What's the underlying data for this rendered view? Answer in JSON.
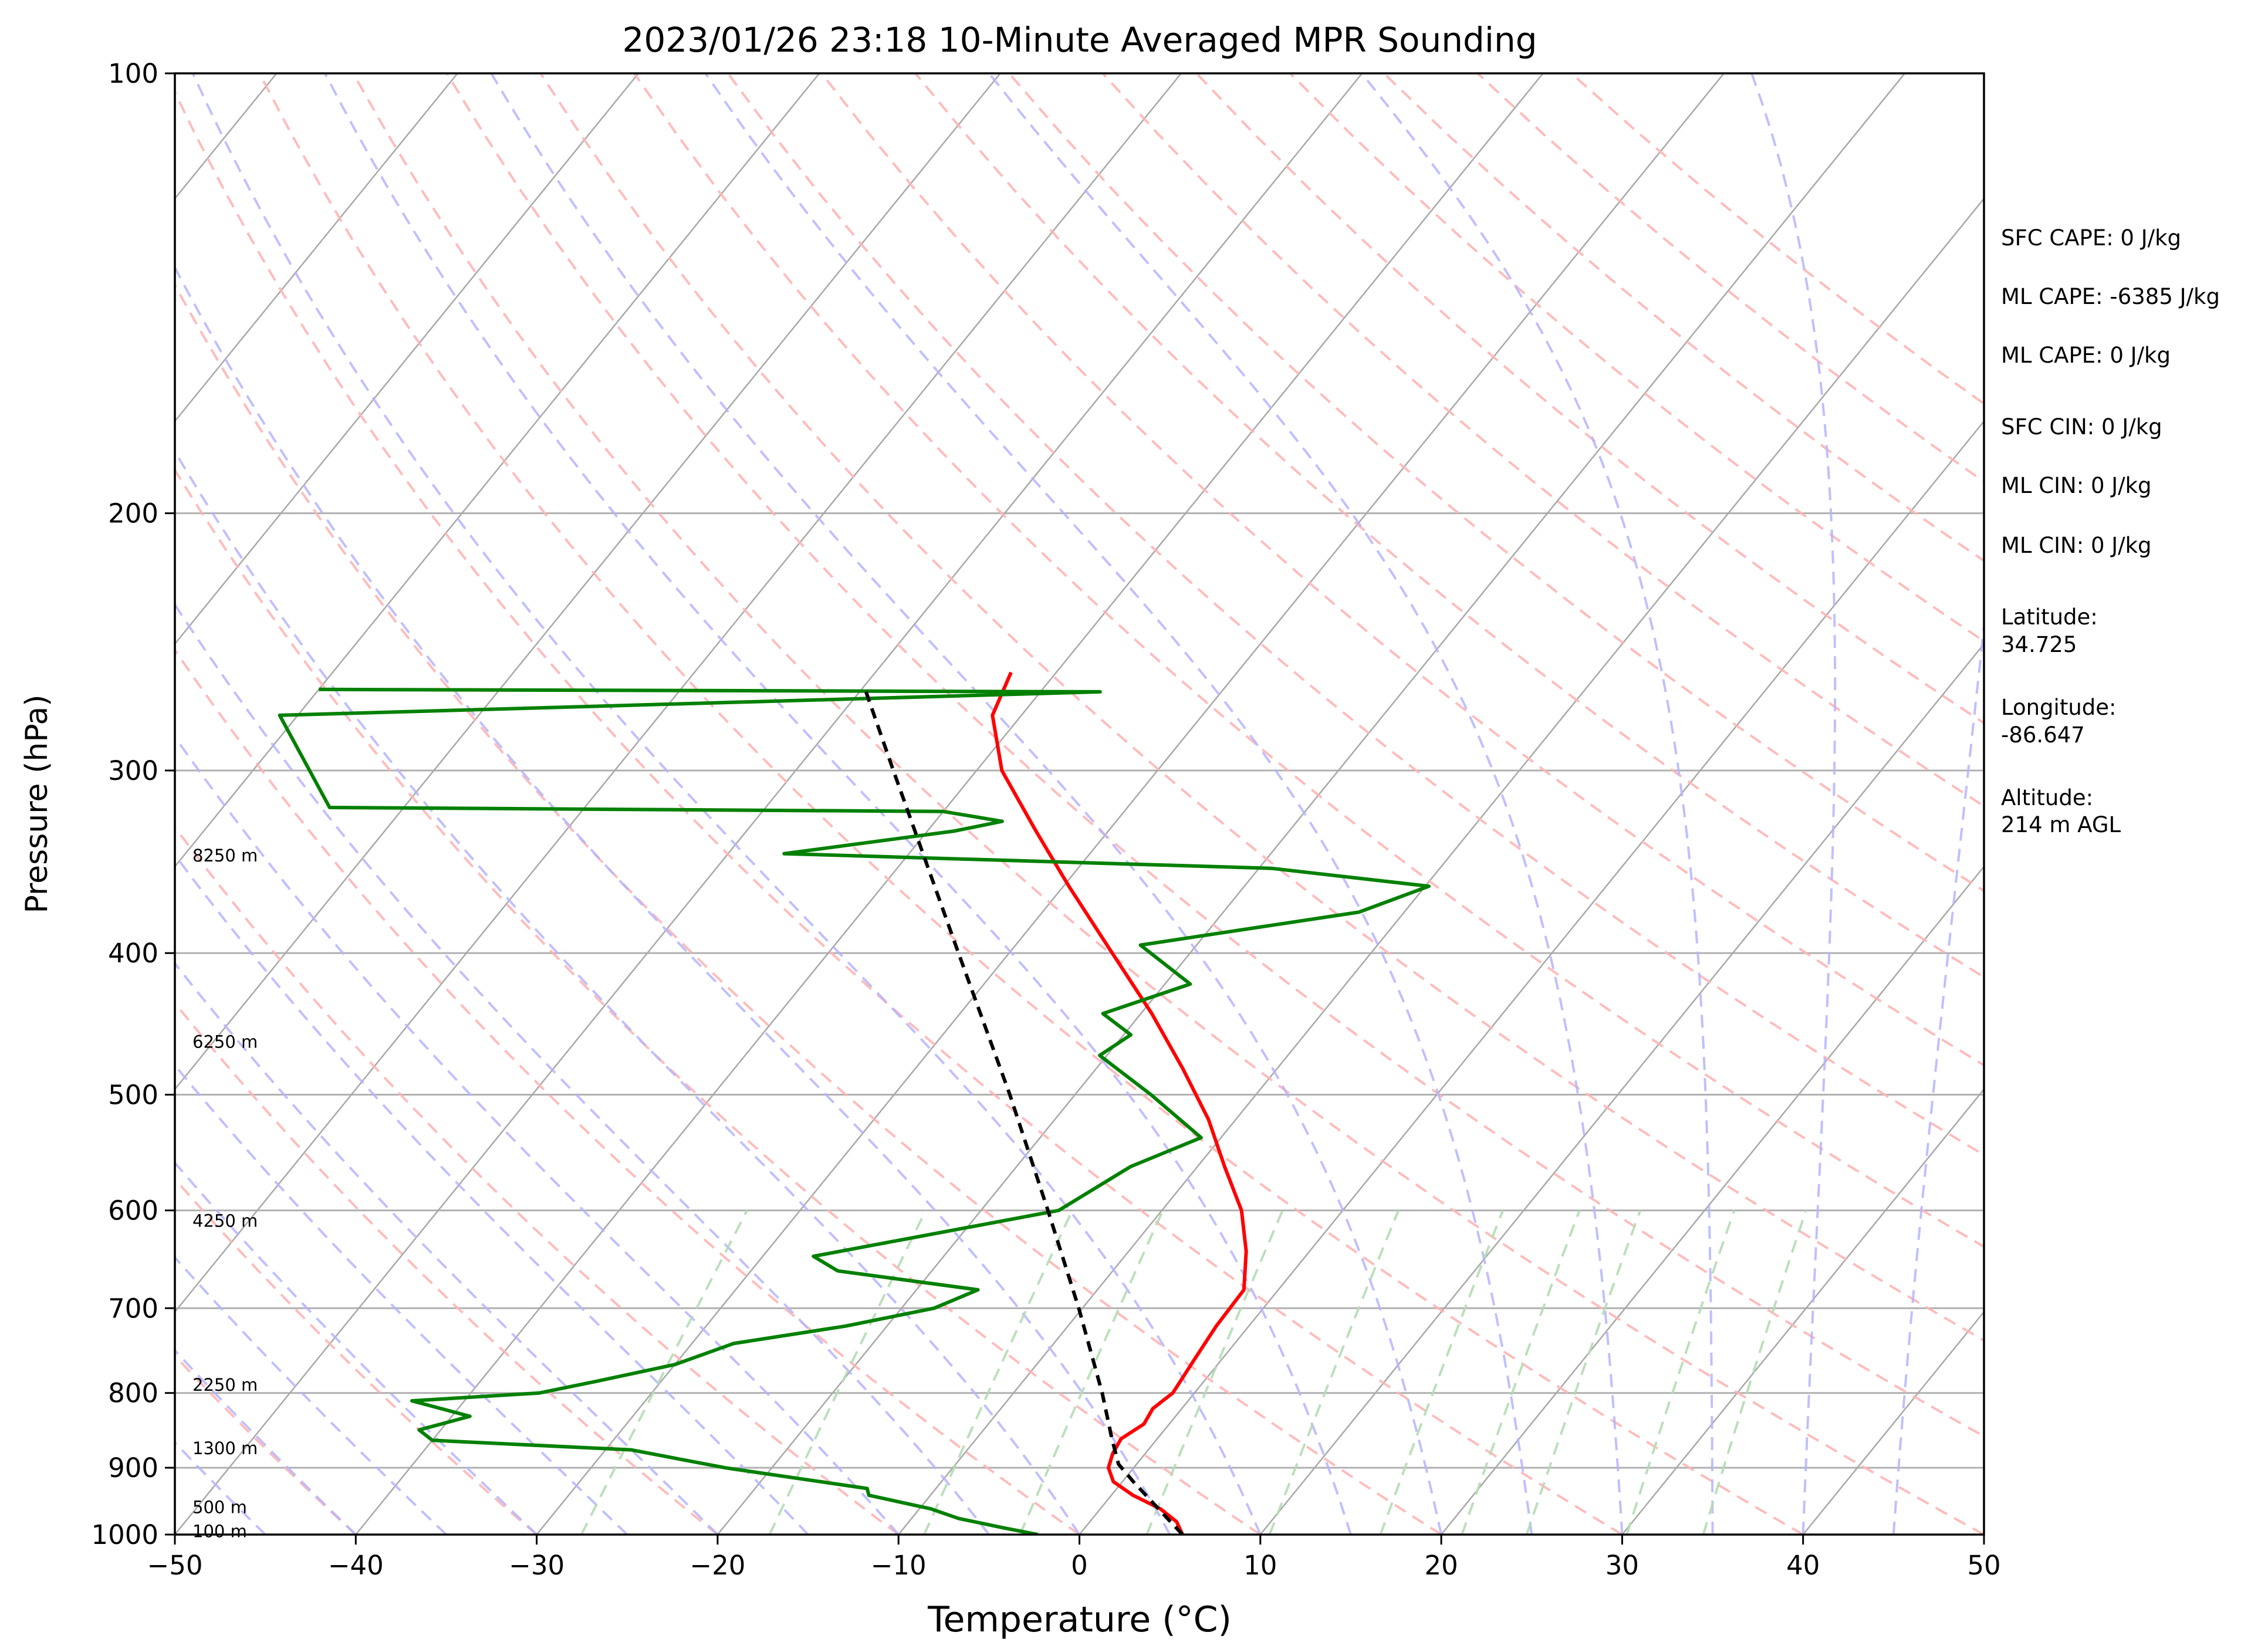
{
  "chart_data": {
    "type": "line",
    "title": "2023/01/26 23:18 10-Minute Averaged MPR Sounding",
    "xlabel": "Temperature (°C)",
    "ylabel": "Pressure (hPa)",
    "xlim": [
      -50,
      50
    ],
    "ylim": [
      1000,
      100
    ],
    "y_scale": "log",
    "skew_t": true,
    "grid": true,
    "x_ticks": [
      "−50",
      "−40",
      "−30",
      "−20",
      "−10",
      "0",
      "10",
      "20",
      "30",
      "40",
      "50"
    ],
    "x_tick_values": [
      -50,
      -40,
      -30,
      -20,
      -10,
      0,
      10,
      20,
      30,
      40,
      50
    ],
    "y_ticks": [
      "100",
      "200",
      "300",
      "400",
      "500",
      "600",
      "700",
      "800",
      "900",
      "1000"
    ],
    "y_tick_values": [
      100,
      200,
      300,
      400,
      500,
      600,
      700,
      800,
      900,
      1000
    ],
    "series": [
      {
        "role": "temperature",
        "color": "#ff0000",
        "points": [
          {
            "p": 1000,
            "t": 5.7
          },
          {
            "p": 980,
            "t": 4.8
          },
          {
            "p": 960,
            "t": 3.3
          },
          {
            "p": 940,
            "t": 1.2
          },
          {
            "p": 920,
            "t": -0.5
          },
          {
            "p": 900,
            "t": -1.4
          },
          {
            "p": 880,
            "t": -1.8
          },
          {
            "p": 860,
            "t": -2.0
          },
          {
            "p": 840,
            "t": -1.4
          },
          {
            "p": 820,
            "t": -1.6
          },
          {
            "p": 800,
            "t": -1.2
          },
          {
            "p": 760,
            "t": -1.5
          },
          {
            "p": 720,
            "t": -1.8
          },
          {
            "p": 680,
            "t": -1.9
          },
          {
            "p": 640,
            "t": -3.5
          },
          {
            "p": 600,
            "t": -5.6
          },
          {
            "p": 560,
            "t": -8.5
          },
          {
            "p": 520,
            "t": -11.5
          },
          {
            "p": 480,
            "t": -15.2
          },
          {
            "p": 440,
            "t": -19.4
          },
          {
            "p": 400,
            "t": -24.3
          },
          {
            "p": 360,
            "t": -29.7
          },
          {
            "p": 330,
            "t": -34.0
          },
          {
            "p": 300,
            "t": -38.6
          },
          {
            "p": 275,
            "t": -41.6
          },
          {
            "p": 257,
            "t": -42.5
          }
        ]
      },
      {
        "role": "dewpoint",
        "color": "#008000",
        "points": [
          {
            "p": 1000,
            "t": -2.3
          },
          {
            "p": 990,
            "t": -4.4
          },
          {
            "p": 975,
            "t": -7.4
          },
          {
            "p": 960,
            "t": -9.4
          },
          {
            "p": 940,
            "t": -13.4
          },
          {
            "p": 930,
            "t": -13.8
          },
          {
            "p": 900,
            "t": -22.6
          },
          {
            "p": 875,
            "t": -28.6
          },
          {
            "p": 862,
            "t": -40.0
          },
          {
            "p": 848,
            "t": -41.2
          },
          {
            "p": 830,
            "t": -39.0
          },
          {
            "p": 810,
            "t": -42.9
          },
          {
            "p": 800,
            "t": -36.2
          },
          {
            "p": 785,
            "t": -33.5
          },
          {
            "p": 765,
            "t": -30.0
          },
          {
            "p": 740,
            "t": -27.7
          },
          {
            "p": 720,
            "t": -22.3
          },
          {
            "p": 700,
            "t": -18.2
          },
          {
            "p": 680,
            "t": -16.6
          },
          {
            "p": 660,
            "t": -25.2
          },
          {
            "p": 645,
            "t": -27.2
          },
          {
            "p": 600,
            "t": -15.7
          },
          {
            "p": 560,
            "t": -13.7
          },
          {
            "p": 535,
            "t": -11.1
          },
          {
            "p": 500,
            "t": -15.8
          },
          {
            "p": 470,
            "t": -20.4
          },
          {
            "p": 455,
            "t": -19.6
          },
          {
            "p": 440,
            "t": -22.1
          },
          {
            "p": 420,
            "t": -18.6
          },
          {
            "p": 395,
            "t": -23.1
          },
          {
            "p": 375,
            "t": -12.5
          },
          {
            "p": 360,
            "t": -9.8
          },
          {
            "p": 350,
            "t": -19.3
          },
          {
            "p": 342,
            "t": -46.9
          },
          {
            "p": 330,
            "t": -38.5
          },
          {
            "p": 325,
            "t": -36.3
          },
          {
            "p": 320,
            "t": -40.0
          },
          {
            "p": 318,
            "t": -74.1
          },
          {
            "p": 275,
            "t": -81.0
          },
          {
            "p": 265,
            "t": -36.7
          },
          {
            "p": 264,
            "t": -80.0
          }
        ]
      },
      {
        "role": "parcel",
        "color": "#000000",
        "dashed": true,
        "points": [
          {
            "p": 1000,
            "t": 5.7
          },
          {
            "p": 960,
            "t": 3.2
          },
          {
            "p": 920,
            "t": 0.6
          },
          {
            "p": 895,
            "t": -1.0
          },
          {
            "p": 860,
            "t": -2.5
          },
          {
            "p": 800,
            "t": -5.1
          },
          {
            "p": 700,
            "t": -10.2
          },
          {
            "p": 600,
            "t": -16.3
          },
          {
            "p": 500,
            "t": -23.6
          },
          {
            "p": 400,
            "t": -32.8
          },
          {
            "p": 300,
            "t": -44.6
          },
          {
            "p": 264,
            "t": -49.8
          }
        ]
      }
    ],
    "height_labels": [
      {
        "text": "8250 m",
        "p": 343
      },
      {
        "text": "6250 m",
        "p": 460
      },
      {
        "text": "4250 m",
        "p": 610
      },
      {
        "text": "2250 m",
        "p": 790
      },
      {
        "text": "1300 m",
        "p": 873
      },
      {
        "text": "500 m",
        "p": 958
      },
      {
        "text": "100 m",
        "p": 995
      }
    ],
    "background_lines": {
      "isotherms": {
        "color": "#aaaaaa",
        "every_c": 10
      },
      "dry_adiabats": {
        "color": "#ffc0c0",
        "dashed": true
      },
      "moist_adiabats": {
        "color": "#c8c8ff",
        "dashed": true
      },
      "mixing_ratio": {
        "color": "#c8e0c8",
        "dashed": true
      }
    }
  },
  "info_panel": {
    "sfc_cape": "SFC CAPE: 0 J/kg",
    "ml_cape_1": "ML CAPE: -6385 J/kg",
    "ml_cape_2": "ML CAPE: 0 J/kg",
    "sfc_cin": "SFC CIN: 0 J/kg",
    "ml_cin_1": "ML CIN: 0 J/kg",
    "ml_cin_2": "ML CIN: 0 J/kg",
    "latitude_label": "Latitude:",
    "latitude_value": "34.725",
    "longitude_label": "Longitude:",
    "longitude_value": "-86.647",
    "altitude_label": "Altitude:",
    "altitude_value": "214 m AGL"
  }
}
